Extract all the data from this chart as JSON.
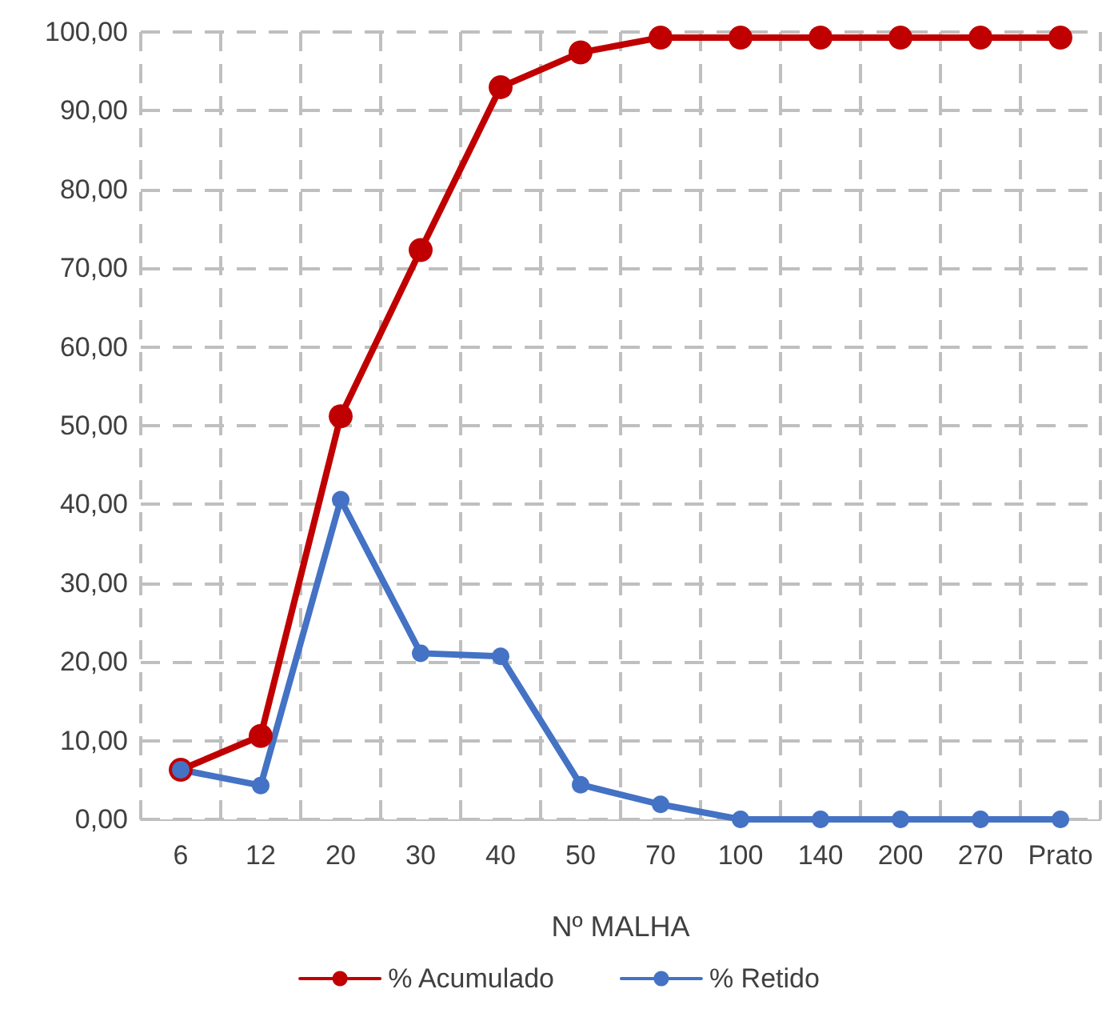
{
  "chart_data": {
    "type": "line",
    "xlabel": "Nº MALHA",
    "categories": [
      "6",
      "12",
      "20",
      "30",
      "40",
      "50",
      "70",
      "100",
      "140",
      "200",
      "270",
      "Prato"
    ],
    "series": [
      {
        "name": "% Acumulado",
        "color": "#c00000",
        "values": [
          6.3,
          10.6,
          51.2,
          72.3,
          93.0,
          97.4,
          99.3,
          99.3,
          99.3,
          99.3,
          99.3,
          99.3
        ]
      },
      {
        "name": "% Retido",
        "color": "#4472c4",
        "values": [
          6.3,
          4.3,
          40.6,
          21.1,
          20.7,
          4.4,
          1.9,
          0,
          0,
          0,
          0,
          0
        ]
      }
    ],
    "ylim": [
      0,
      100
    ],
    "yticks": [
      {
        "value": 0,
        "label": "0,00"
      },
      {
        "value": 10,
        "label": "10,00"
      },
      {
        "value": 20,
        "label": "20,00"
      },
      {
        "value": 30,
        "label": "30,00"
      },
      {
        "value": 40,
        "label": "40,00"
      },
      {
        "value": 50,
        "label": "50,00"
      },
      {
        "value": 60,
        "label": "60,00"
      },
      {
        "value": 70,
        "label": "70,00"
      },
      {
        "value": 80,
        "label": "80,00"
      },
      {
        "value": 90,
        "label": "90,00"
      },
      {
        "value": 100,
        "label": "100,00"
      }
    ],
    "grid": true,
    "legend": "bottom",
    "marker": "circle",
    "line_style": "solid"
  }
}
